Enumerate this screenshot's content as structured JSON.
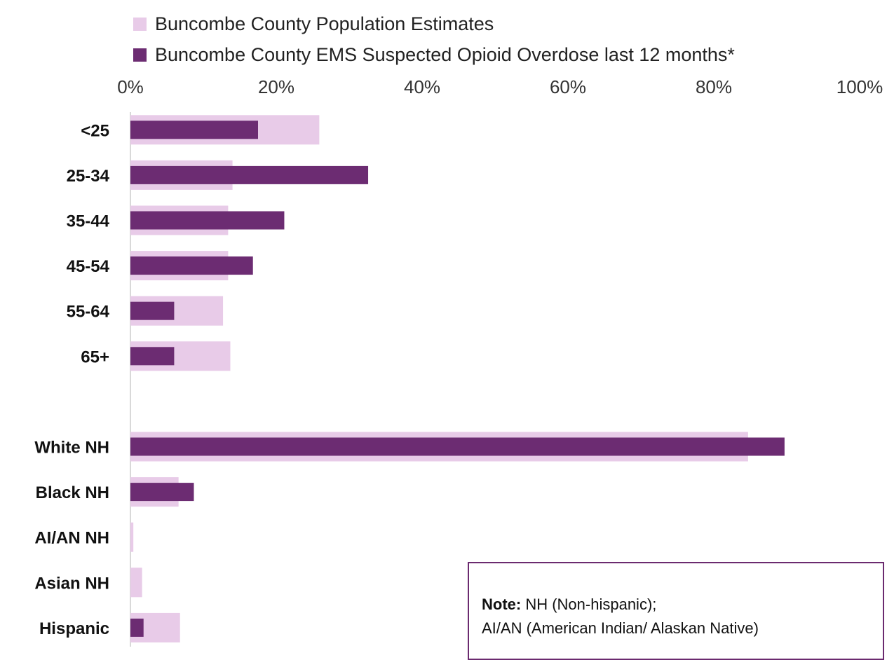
{
  "legend": {
    "population_label": "Buncombe County Population Estimates",
    "ems_label": "Buncombe County EMS Suspected Opioid Overdose last 12 months*"
  },
  "note": {
    "bold": "Note:",
    "line1": " NH (Non-hispanic);",
    "line2": "AI/AN (American Indian/ Alaskan Native)"
  },
  "colors": {
    "population": "#e8cbe8",
    "ems": "#6c2c72",
    "axis": "#d9d9d9",
    "note_border": "#6b2a6f"
  },
  "chart_data": {
    "type": "bar",
    "orientation": "horizontal",
    "xlim": [
      0,
      100
    ],
    "x_ticks": [
      "0%",
      "20%",
      "40%",
      "60%",
      "80%",
      "100%"
    ],
    "legend_position": "top",
    "categories": [
      "<25",
      "25-34",
      "35-44",
      "45-54",
      "55-64",
      "65+",
      "",
      "White NH",
      "Black NH",
      "AI/AN NH",
      "Asian NH",
      "Hispanic"
    ],
    "series": [
      {
        "name": "Buncombe County Population Estimates",
        "values": [
          25.9,
          14.0,
          13.4,
          13.4,
          12.7,
          13.7,
          null,
          84.7,
          6.6,
          0.4,
          1.6,
          6.8
        ]
      },
      {
        "name": "Buncombe County EMS Suspected Opioid Overdose last 12 months*",
        "values": [
          17.5,
          32.6,
          21.1,
          16.8,
          6.0,
          6.0,
          null,
          89.7,
          8.7,
          0.0,
          0.0,
          1.8
        ]
      }
    ]
  }
}
